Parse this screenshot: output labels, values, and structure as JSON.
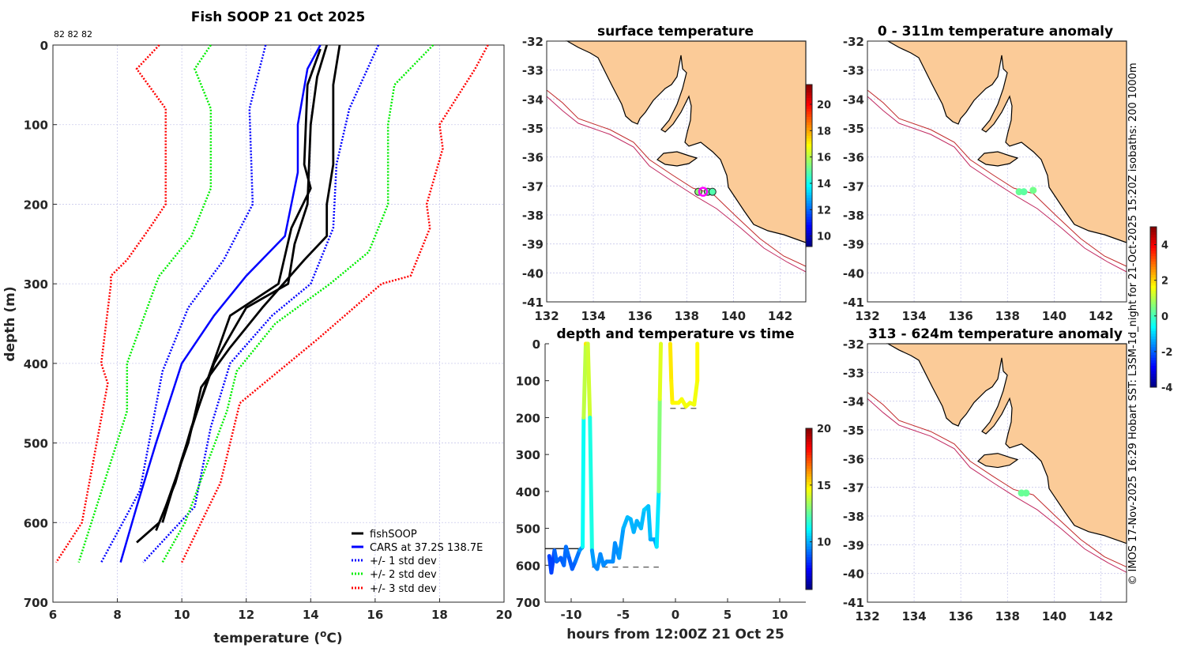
{
  "chart_data": [
    {
      "type": "line",
      "title": "Fish SOOP 21 Oct 2025",
      "annotation": "82 82 82",
      "xlabel": {
        "text": "temperature (",
        "sup": "o",
        "tail": "C)"
      },
      "ylabel": "depth (m)",
      "xlim": [
        6,
        20
      ],
      "ylim": [
        700,
        0
      ],
      "xticks": [
        6,
        8,
        10,
        12,
        14,
        16,
        18,
        20
      ],
      "yticks": [
        0,
        100,
        200,
        300,
        400,
        500,
        600,
        700
      ],
      "grid": true,
      "legend_position": "bottom-right",
      "legend": [
        "fishSOOP",
        "CARS at 37.2S 138.7E",
        "+/- 1 std dev",
        "+/- 2 std dev",
        "+/- 3 std dev"
      ],
      "colors": {
        "fishSOOP": "#000000",
        "CARS": "#0000ff",
        "std1": "#0000ff",
        "std2": "#00ee00",
        "std3": "#ff0000"
      },
      "series": [
        {
          "name": "fishSOOP",
          "profiles": [
            [
              [
                14.5,
                0
              ],
              [
                14.2,
                40
              ],
              [
                14.0,
                100
              ],
              [
                13.9,
                200
              ],
              [
                13.5,
                250
              ],
              [
                13.3,
                300
              ],
              [
                12.0,
                330
              ],
              [
                11.0,
                400
              ],
              [
                10.3,
                480
              ],
              [
                9.8,
                550
              ],
              [
                9.3,
                600
              ],
              [
                8.6,
                625
              ]
            ],
            [
              [
                14.9,
                0
              ],
              [
                14.7,
                50
              ],
              [
                14.7,
                150
              ],
              [
                14.5,
                200
              ],
              [
                14.5,
                240
              ],
              [
                13.8,
                270
              ],
              [
                12.5,
                330
              ],
              [
                11.5,
                380
              ],
              [
                10.6,
                430
              ],
              [
                10.2,
                500
              ],
              [
                9.5,
                580
              ],
              [
                9.2,
                610
              ]
            ],
            [
              [
                14.3,
                5
              ],
              [
                13.9,
                50
              ],
              [
                13.8,
                150
              ],
              [
                14.0,
                180
              ],
              [
                13.4,
                230
              ],
              [
                13.0,
                300
              ],
              [
                11.5,
                340
              ],
              [
                10.8,
                420
              ],
              [
                10.0,
                520
              ],
              [
                9.4,
                600
              ]
            ]
          ]
        },
        {
          "name": "CARS at 37.2S 138.7E",
          "points": [
            [
              14.3,
              0
            ],
            [
              13.9,
              30
            ],
            [
              13.6,
              100
            ],
            [
              13.6,
              160
            ],
            [
              13.2,
              240
            ],
            [
              12.0,
              290
            ],
            [
              11.0,
              340
            ],
            [
              10.0,
              400
            ],
            [
              9.2,
              500
            ],
            [
              8.6,
              580
            ],
            [
              8.1,
              650
            ]
          ]
        },
        {
          "name": "+/- 1 std dev",
          "lower": [
            [
              12.6,
              0
            ],
            [
              12.1,
              80
            ],
            [
              12.2,
              200
            ],
            [
              11.3,
              270
            ],
            [
              10.2,
              330
            ],
            [
              9.4,
              410
            ],
            [
              8.7,
              560
            ],
            [
              7.5,
              650
            ]
          ],
          "upper": [
            [
              16.1,
              0
            ],
            [
              15.2,
              80
            ],
            [
              14.8,
              150
            ],
            [
              14.7,
              230
            ],
            [
              14.0,
              300
            ],
            [
              12.8,
              340
            ],
            [
              11.5,
              400
            ],
            [
              10.9,
              480
            ],
            [
              10.4,
              580
            ],
            [
              8.8,
              650
            ]
          ]
        },
        {
          "name": "+/- 2 std dev",
          "lower": [
            [
              10.9,
              0
            ],
            [
              10.4,
              30
            ],
            [
              10.9,
              80
            ],
            [
              10.9,
              180
            ],
            [
              10.3,
              240
            ],
            [
              9.3,
              290
            ],
            [
              9.2,
              300
            ],
            [
              8.3,
              400
            ],
            [
              8.3,
              460
            ],
            [
              6.8,
              650
            ]
          ],
          "upper": [
            [
              17.8,
              0
            ],
            [
              16.6,
              50
            ],
            [
              16.4,
              100
            ],
            [
              16.4,
              200
            ],
            [
              15.8,
              260
            ],
            [
              14.6,
              300
            ],
            [
              12.9,
              350
            ],
            [
              11.7,
              410
            ],
            [
              11.4,
              460
            ],
            [
              10.1,
              600
            ],
            [
              9.4,
              650
            ]
          ]
        },
        {
          "name": "+/- 3 std dev",
          "lower": [
            [
              9.3,
              0
            ],
            [
              8.6,
              30
            ],
            [
              9.5,
              80
            ],
            [
              9.5,
              120
            ],
            [
              9.5,
              200
            ],
            [
              9.0,
              230
            ],
            [
              8.3,
              270
            ],
            [
              7.8,
              290
            ],
            [
              7.8,
              300
            ],
            [
              7.5,
              400
            ],
            [
              7.7,
              425
            ],
            [
              6.9,
              600
            ],
            [
              6.1,
              650
            ]
          ],
          "upper": [
            [
              19.5,
              0
            ],
            [
              19.1,
              30
            ],
            [
              18.0,
              100
            ],
            [
              18.1,
              130
            ],
            [
              17.6,
              200
            ],
            [
              17.7,
              230
            ],
            [
              17.1,
              290
            ],
            [
              16.2,
              300
            ],
            [
              14.2,
              370
            ],
            [
              11.8,
              450
            ],
            [
              11.2,
              550
            ],
            [
              10.0,
              650
            ]
          ]
        }
      ]
    },
    {
      "type": "scatter",
      "title": "surface temperature",
      "xlim": [
        132,
        143.1
      ],
      "ylim": [
        -41,
        -32
      ],
      "xticks": [
        132,
        134,
        136,
        138,
        140,
        142
      ],
      "yticks": [
        -32,
        -33,
        -34,
        -35,
        -36,
        -37,
        -38,
        -39,
        -40,
        -41
      ],
      "colorbar": {
        "range": [
          9.2,
          21.5
        ],
        "ticks": [
          10,
          12,
          14,
          16,
          18,
          20
        ]
      },
      "points": [
        [
          138.5,
          -37.2,
          15.5
        ],
        [
          138.9,
          -37.2,
          15.0
        ],
        [
          139.1,
          -37.2,
          14.8
        ]
      ],
      "current_position": [
        138.7,
        -37.2
      ],
      "marker_color": "#ff00ff"
    },
    {
      "type": "scatter",
      "title": "0 - 311m temperature anomaly",
      "xlim": [
        132,
        143.1
      ],
      "ylim": [
        -41,
        -32
      ],
      "xticks": [
        132,
        134,
        136,
        138,
        140,
        142
      ],
      "yticks": [
        -32,
        -33,
        -34,
        -35,
        -36,
        -37,
        -38,
        -39,
        -40,
        -41
      ],
      "points": [
        [
          138.5,
          -37.2,
          0.3
        ],
        [
          138.7,
          -37.2,
          0.2
        ],
        [
          139.1,
          -37.15,
          0.4
        ]
      ]
    },
    {
      "type": "scatter",
      "title": "313 - 624m temperature anomaly",
      "xlim": [
        132,
        143.1
      ],
      "ylim": [
        -41,
        -32
      ],
      "xticks": [
        132,
        134,
        136,
        138,
        140,
        142
      ],
      "yticks": [
        -32,
        -33,
        -34,
        -35,
        -36,
        -37,
        -38,
        -39,
        -40,
        -41
      ],
      "points": [
        [
          138.6,
          -37.2,
          0.3
        ],
        [
          138.8,
          -37.2,
          0.3
        ]
      ],
      "colorbar": {
        "range": [
          -4,
          5
        ],
        "ticks": [
          4,
          2,
          0,
          -2,
          -4
        ]
      }
    },
    {
      "type": "line",
      "title": "depth and temperature vs time",
      "xlabel": "hours from 12:00Z 21 Oct 25",
      "xlim": [
        -12.5,
        12.5
      ],
      "ylim": [
        700,
        0
      ],
      "xticks": [
        -10,
        -5,
        0,
        5,
        10
      ],
      "yticks": [
        0,
        100,
        200,
        300,
        400,
        500,
        600,
        700
      ],
      "colorbar": {
        "range": [
          5.8,
          20
        ],
        "ticks": [
          20,
          15,
          10
        ]
      },
      "segments": [
        [
          [
            -12.1,
            575,
            9
          ],
          [
            -11.9,
            620,
            8
          ],
          [
            -11.6,
            560,
            9
          ],
          [
            -11.4,
            590,
            9
          ],
          [
            -11,
            580,
            9
          ],
          [
            -10.7,
            600,
            8.8
          ],
          [
            -10.5,
            550,
            9.3
          ],
          [
            -10.2,
            580,
            9
          ],
          [
            -9.9,
            610,
            8.8
          ],
          [
            -9.6,
            590,
            9
          ],
          [
            -9.2,
            560,
            9.4
          ],
          [
            -8.9,
            550,
            10
          ],
          [
            -8.8,
            200,
            12.5
          ],
          [
            -8.6,
            0,
            15
          ],
          [
            -8.4,
            0,
            15
          ],
          [
            -8.2,
            200,
            13
          ],
          [
            -8.0,
            560,
            10
          ],
          [
            -7.8,
            600,
            9.5
          ],
          [
            -7.5,
            610,
            9.5
          ],
          [
            -7.2,
            570,
            9.5
          ],
          [
            -6.9,
            600,
            9.5
          ],
          [
            -6.6,
            590,
            9.5
          ],
          [
            -6.0,
            590,
            9.5
          ],
          [
            -5.8,
            540,
            9.6
          ],
          [
            -5.4,
            580,
            9.5
          ],
          [
            -5.0,
            500,
            10
          ],
          [
            -4.6,
            470,
            10.2
          ],
          [
            -4.3,
            475,
            10.2
          ],
          [
            -4.0,
            510,
            10
          ],
          [
            -3.7,
            480,
            10.1
          ],
          [
            -3.3,
            500,
            10
          ],
          [
            -3.0,
            450,
            10.4
          ],
          [
            -2.6,
            440,
            10.5
          ],
          [
            -2.4,
            530,
            10
          ],
          [
            -2.0,
            530,
            10
          ],
          [
            -1.8,
            550,
            9.6
          ],
          [
            -1.6,
            400,
            12
          ],
          [
            -1.5,
            150,
            14
          ],
          [
            -1.4,
            0,
            14.5
          ]
        ],
        [
          [
            -0.5,
            0,
            15
          ],
          [
            -0.4,
            100,
            15
          ],
          [
            -0.3,
            160,
            14.8
          ],
          [
            0.3,
            160,
            14.7
          ],
          [
            0.6,
            150,
            14.6
          ],
          [
            1.0,
            170,
            14.5
          ],
          [
            1.4,
            160,
            14.5
          ],
          [
            1.8,
            165,
            14.5
          ],
          [
            2.1,
            100,
            14.5
          ],
          [
            2.1,
            0,
            15
          ]
        ]
      ],
      "bottom_lines": [
        {
          "style": "solid",
          "depth": 555,
          "from": -12.5,
          "to": -8.8
        },
        {
          "style": "dashed",
          "depth": 605,
          "from": -8.0,
          "to": -1.6
        },
        {
          "style": "dashed",
          "depth": 175,
          "from": -0.5,
          "to": 2.1
        }
      ]
    }
  ],
  "credit": "© IMOS 17-Nov-2025 16:29 Hobart SST: L3SM-1d_night for 21-Oct-2025 15:20Z isobaths: 200  1000m"
}
